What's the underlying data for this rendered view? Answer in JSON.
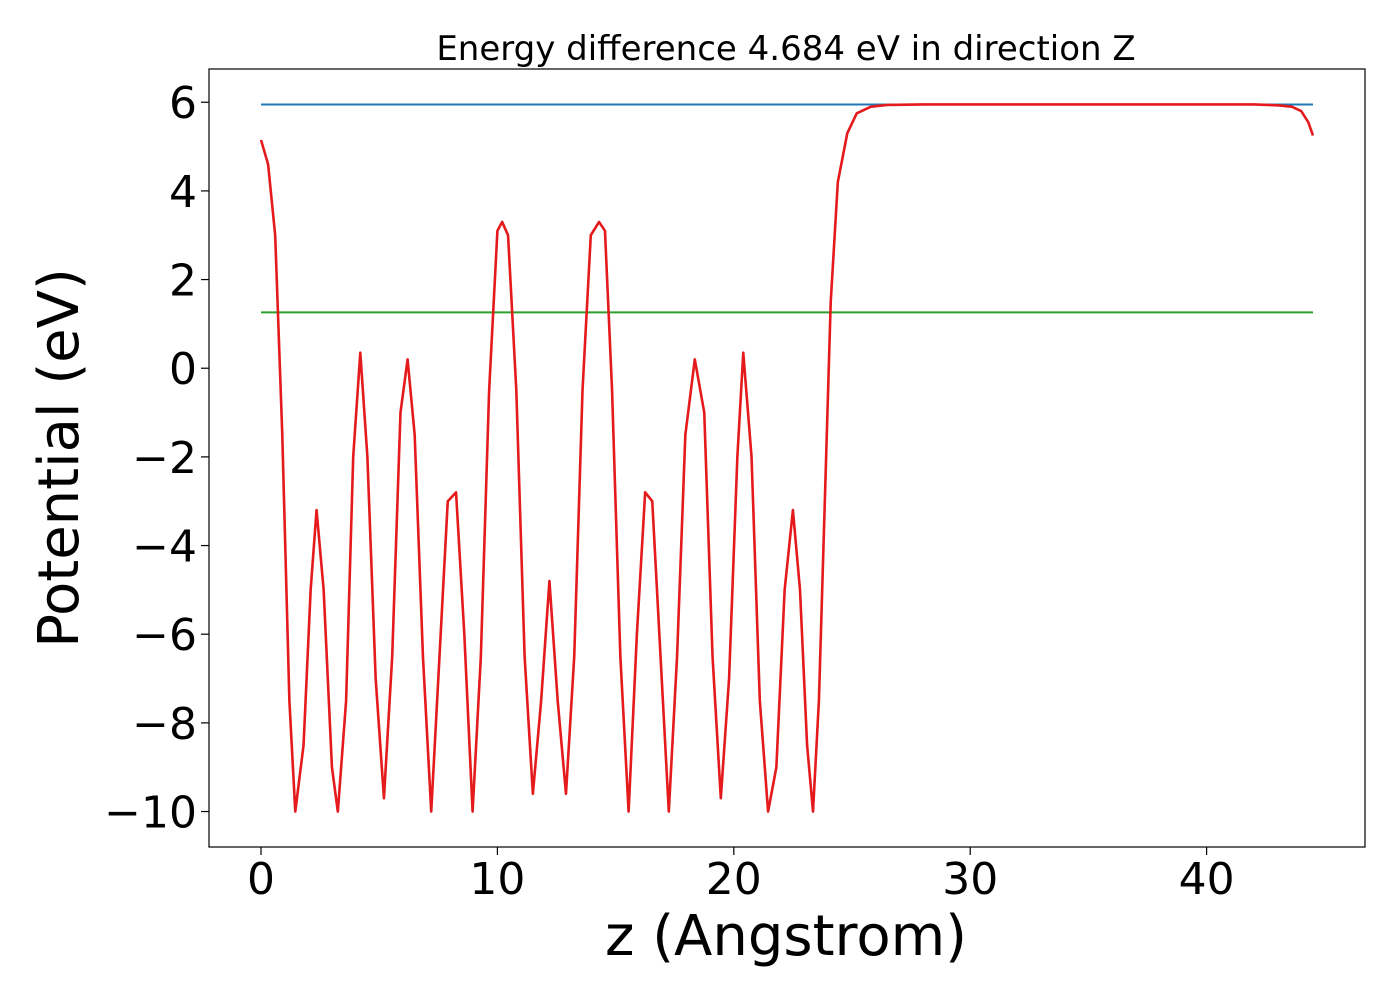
{
  "chart_data": {
    "type": "line",
    "title": "Energy difference 4.684 eV in direction Z",
    "xlabel": "z (Angstrom)",
    "ylabel": "Potential (eV)",
    "xlim": [
      -2.2,
      46.7
    ],
    "ylim": [
      -10.8,
      6.75
    ],
    "grid": false,
    "x_ticks": [
      0,
      10,
      20,
      30,
      40
    ],
    "x_tick_labels": [
      "0",
      "10",
      "20",
      "30",
      "40"
    ],
    "y_ticks": [
      6,
      4,
      2,
      0,
      -2,
      -4,
      -6,
      -8,
      -10
    ],
    "y_tick_labels": [
      "6",
      "4",
      "2",
      "0",
      "−2",
      "−4",
      "−6",
      "−8",
      "−10"
    ],
    "series": [
      {
        "color": "#1f77b4",
        "x": [
          0,
          44.5
        ],
        "y": [
          5.95,
          5.95
        ]
      },
      {
        "color": "#2ca02c",
        "x": [
          0,
          44.5
        ],
        "y": [
          1.26,
          1.26
        ]
      },
      {
        "color": "#e41a1c",
        "x": [
          0,
          0.3,
          0.6,
          0.9,
          1.2,
          1.45,
          1.8,
          2.1,
          2.35,
          2.65,
          3.0,
          3.25,
          3.6,
          3.9,
          4.2,
          4.5,
          4.85,
          5.2,
          5.55,
          5.9,
          6.2,
          6.5,
          6.85,
          7.2,
          7.55,
          7.9,
          8.25,
          8.6,
          8.95,
          9.3,
          9.65,
          10.0,
          10.2,
          10.45,
          10.8,
          11.15,
          11.5,
          11.85,
          12.2,
          12.55,
          12.9,
          13.25,
          13.6,
          13.95,
          14.3,
          14.55,
          14.85,
          15.2,
          15.55,
          15.9,
          16.25,
          16.55,
          16.9,
          17.25,
          17.6,
          17.95,
          18.35,
          18.75,
          19.1,
          19.45,
          19.8,
          20.15,
          20.4,
          20.75,
          21.1,
          21.45,
          21.8,
          22.15,
          22.5,
          22.8,
          23.1,
          23.35,
          23.6,
          23.85,
          24.1,
          24.4,
          24.8,
          25.2,
          25.8,
          26.5,
          28.0,
          30.0,
          35.0,
          40.0,
          42.0,
          43.0,
          43.6,
          44.0,
          44.3,
          44.5
        ],
        "y": [
          5.15,
          4.6,
          3.0,
          -1.5,
          -7.5,
          -10.0,
          -8.5,
          -5.0,
          -3.2,
          -5.0,
          -9.0,
          -10.0,
          -7.5,
          -2.0,
          0.35,
          -2.0,
          -7.0,
          -9.7,
          -6.5,
          -1.0,
          0.2,
          -1.5,
          -6.5,
          -10.0,
          -6.5,
          -3.0,
          -2.8,
          -6.0,
          -10.0,
          -6.5,
          -0.5,
          3.1,
          3.3,
          3.0,
          -0.5,
          -6.5,
          -9.6,
          -7.5,
          -4.8,
          -7.5,
          -9.6,
          -6.5,
          -0.5,
          3.0,
          3.3,
          3.1,
          -0.5,
          -6.5,
          -10.0,
          -6.0,
          -2.8,
          -3.0,
          -6.5,
          -10.0,
          -6.5,
          -1.5,
          0.2,
          -1.0,
          -6.5,
          -9.7,
          -7.0,
          -2.0,
          0.35,
          -2.0,
          -7.5,
          -10.0,
          -9.0,
          -5.0,
          -3.2,
          -5.0,
          -8.5,
          -10.0,
          -7.5,
          -3.0,
          1.5,
          4.2,
          5.3,
          5.75,
          5.9,
          5.94,
          5.95,
          5.95,
          5.95,
          5.95,
          5.95,
          5.93,
          5.9,
          5.8,
          5.55,
          5.25
        ]
      }
    ]
  }
}
